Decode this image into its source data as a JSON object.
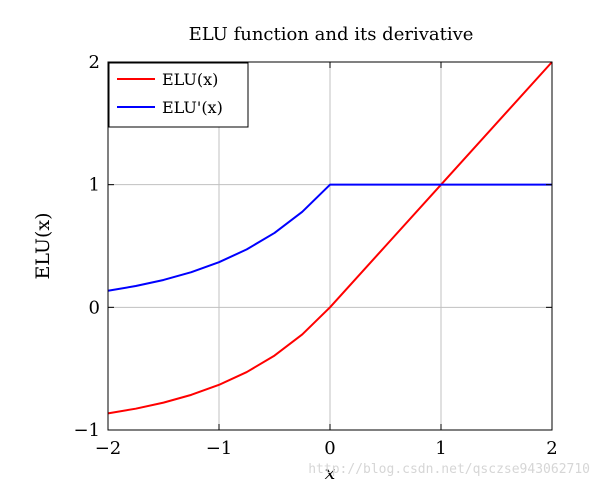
{
  "chart_data": {
    "type": "line",
    "title": "ELU function and its derivative",
    "xlabel": "x",
    "ylabel": "ELU(x)",
    "xlim": [
      -2,
      2
    ],
    "ylim": [
      -1,
      2
    ],
    "x_ticks": [
      -2,
      -1,
      0,
      1,
      2
    ],
    "x_tick_labels": [
      "−2",
      "−1",
      "0",
      "1",
      "2"
    ],
    "y_ticks": [
      -1,
      0,
      1,
      2
    ],
    "y_tick_labels": [
      "−1",
      "0",
      "1",
      "2"
    ],
    "grid": true,
    "legend_position": "top-left",
    "series": [
      {
        "name": "ELU(x)",
        "color": "#ff0000",
        "x": [
          -2.0,
          -1.75,
          -1.5,
          -1.25,
          -1.0,
          -0.75,
          -0.5,
          -0.25,
          0.0,
          0.5,
          1.0,
          1.5,
          2.0
        ],
        "values": [
          -0.8647,
          -0.8262,
          -0.7769,
          -0.7135,
          -0.6321,
          -0.5276,
          -0.3935,
          -0.2212,
          0.0,
          0.5,
          1.0,
          1.5,
          2.0
        ]
      },
      {
        "name": "ELU'(x)",
        "color": "#0000ff",
        "x": [
          -2.0,
          -1.75,
          -1.5,
          -1.25,
          -1.0,
          -0.75,
          -0.5,
          -0.25,
          0.0,
          0.5,
          1.0,
          1.5,
          2.0
        ],
        "values": [
          0.1353,
          0.1738,
          0.2231,
          0.2865,
          0.3679,
          0.4724,
          0.6065,
          0.7788,
          1.0,
          1.0,
          1.0,
          1.0,
          1.0
        ]
      }
    ]
  },
  "legend": {
    "items": [
      {
        "label": "ELU(x)",
        "color": "#ff0000"
      },
      {
        "label": "ELU'(x)",
        "color": "#0000ff"
      }
    ]
  },
  "watermark": "http://blog.csdn.net/qsczse943062710"
}
